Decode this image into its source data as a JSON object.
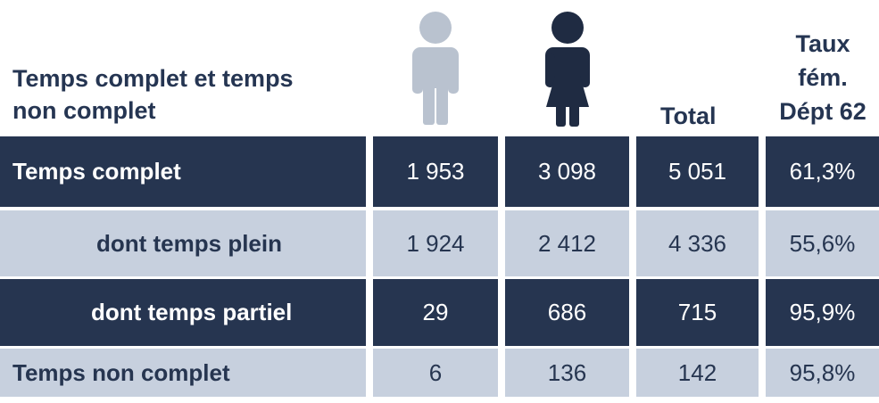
{
  "header": {
    "title": [
      "Temps complet et temps",
      "non complet"
    ],
    "total": "Total",
    "rate": [
      "Taux",
      "fém.",
      "Dépt 62"
    ]
  },
  "table": {
    "rows": [
      [
        "Temps complet",
        "1 953",
        "3 098",
        "5 051",
        "61,3%"
      ],
      [
        "dont temps plein",
        "1 924",
        "2 412",
        "4 336",
        "55,6%"
      ],
      [
        "dont temps partiel",
        "29",
        "686",
        "715",
        "95,9%"
      ],
      [
        "Temps non complet",
        "6",
        "136",
        "142",
        "95,8%"
      ]
    ]
  }
}
